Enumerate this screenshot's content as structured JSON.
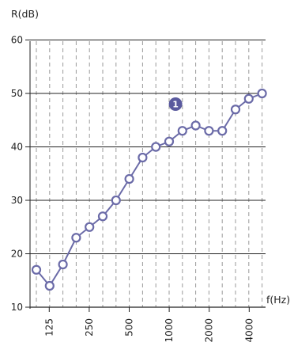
{
  "chart_data": {
    "type": "line",
    "ylabel": "R(dB)",
    "xlabel": "f(Hz)",
    "ylim": [
      10,
      60
    ],
    "y_ticks": [
      10,
      20,
      30,
      40,
      50,
      60
    ],
    "x_scale": "log, one-third-octave bands",
    "x_ticks": [
      {
        "label": "125",
        "value": 125
      },
      {
        "label": "250",
        "value": 250
      },
      {
        "label": "500",
        "value": 500
      },
      {
        "label": "1000",
        "value": 1000
      },
      {
        "label": "2000",
        "value": 2000
      },
      {
        "label": "4000",
        "value": 4000
      }
    ],
    "x": [
      100,
      125,
      160,
      200,
      250,
      315,
      400,
      500,
      630,
      800,
      1000,
      1250,
      1600,
      2000,
      2500,
      3150,
      4000,
      5000
    ],
    "series": [
      {
        "values": [
          17,
          14,
          18,
          23,
          25,
          27,
          30,
          34,
          38,
          40,
          41,
          43,
          44,
          43,
          43,
          47,
          49,
          50
        ],
        "color": "#6b6ba8"
      }
    ],
    "grid": "horizontal solid at y ticks, vertical dashed at each band",
    "annotation": {
      "text": "1",
      "x": 1000,
      "y": 48,
      "color": "#5a5a9e"
    }
  }
}
